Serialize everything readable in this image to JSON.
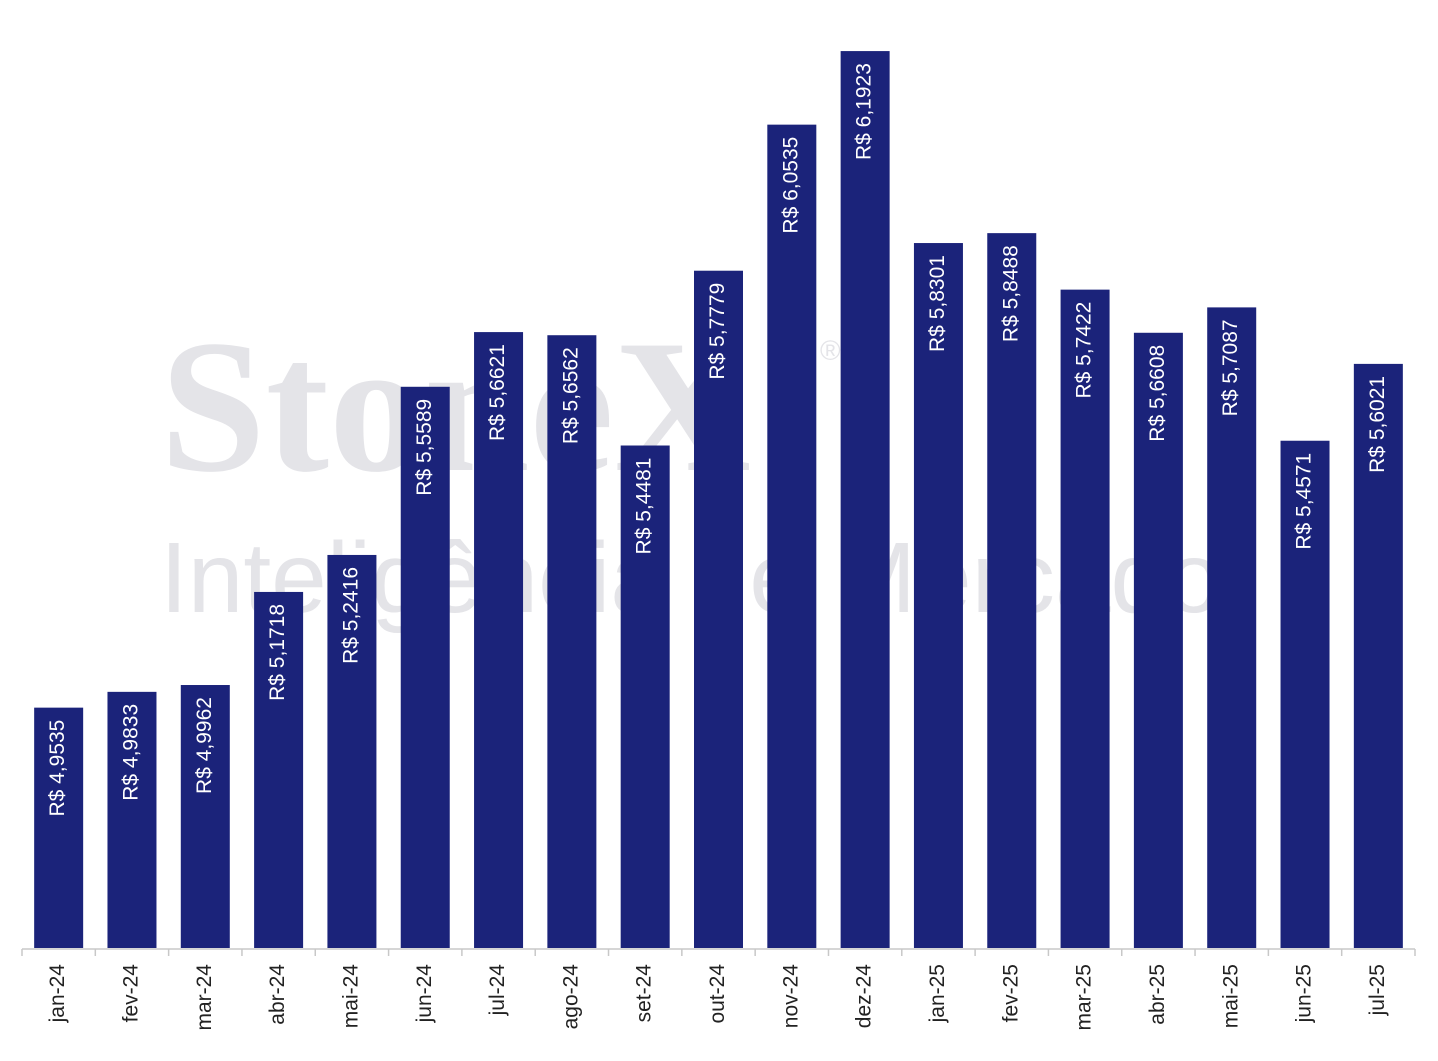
{
  "chart_data": {
    "type": "bar",
    "watermark": "StoneX",
    "watermark_mark": "®",
    "watermark_subtitle": "Inteligência de Mercado",
    "categories": [
      "jan-24",
      "fev-24",
      "mar-24",
      "abr-24",
      "mai-24",
      "jun-24",
      "jul-24",
      "ago-24",
      "set-24",
      "out-24",
      "nov-24",
      "dez-24",
      "jan-25",
      "fev-25",
      "mar-25",
      "abr-25",
      "mai-25",
      "jun-25",
      "jul-25"
    ],
    "values": [
      4.9535,
      4.9833,
      4.9962,
      5.1718,
      5.2416,
      5.5589,
      5.6621,
      5.6562,
      5.4481,
      5.7779,
      6.0535,
      6.1923,
      5.8301,
      5.8488,
      5.7422,
      5.6608,
      5.7087,
      5.4571,
      5.6021
    ],
    "value_labels": [
      "R$ 4,9535",
      "R$ 4,9833",
      "R$ 4,9962",
      "R$ 5,1718",
      "R$ 5,2416",
      "R$ 5,5589",
      "R$ 5,6621",
      "R$ 5,6562",
      "R$ 5,4481",
      "R$ 5,7779",
      "R$ 6,0535",
      "R$ 6,1923",
      "R$ 5,8301",
      "R$ 5,8488",
      "R$ 5,7422",
      "R$ 5,6608",
      "R$ 5,7087",
      "R$ 5,4571",
      "R$ 5,6021"
    ],
    "color": "#1b237a",
    "ylim": [
      4.5,
      6.2
    ]
  }
}
